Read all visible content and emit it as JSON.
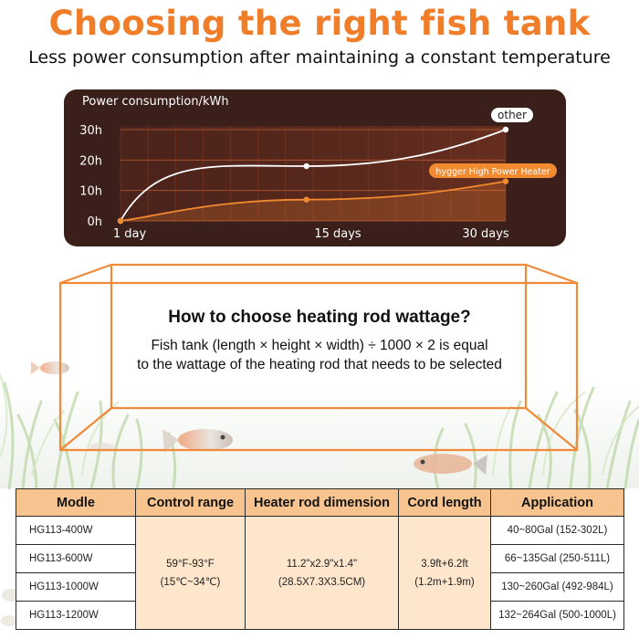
{
  "header": {
    "title": "Choosing the right fish tank",
    "subtitle": "Less power consumption after maintaining a constant temperature"
  },
  "chart_data": {
    "type": "line",
    "ylabel": "Power consumption/kWh",
    "x_ticks": [
      "1 day",
      "15 days",
      "30 days"
    ],
    "y_ticks": [
      "0h",
      "10h",
      "20h",
      "30h"
    ],
    "ylim": [
      0,
      30
    ],
    "grid": true,
    "series": [
      {
        "name": "other",
        "x": [
          1,
          15,
          30
        ],
        "values": [
          0,
          18,
          30
        ],
        "color": "#ffffff"
      },
      {
        "name": "hygger High Power Heater",
        "x": [
          1,
          15,
          30
        ],
        "values": [
          0,
          7,
          13
        ],
        "color": "#f28a30"
      }
    ]
  },
  "info": {
    "question": "How to choose heating rod wattage?",
    "line1": "Fish tank (length × height × width) ÷ 1000 × 2 is equal",
    "line2": "to the wattage of the heating rod that needs to be selected"
  },
  "table": {
    "headers": [
      "Modle",
      "Control range",
      "Heater rod dimension",
      "Cord length",
      "Application"
    ],
    "models": [
      "HG113-400W",
      "HG113-600W",
      "HG113-1000W",
      "HG113-1200W"
    ],
    "control_range": [
      "59°F-93°F",
      "(15℃~34℃)"
    ],
    "dimension": [
      "11.2\"x2.9\"x1.4\"",
      "(28.5X7.3X3.5CM)"
    ],
    "cord_length": [
      "3.9ft+6.2ft",
      "(1.2m+1.9m)"
    ],
    "applications": [
      "40~80Gal (152-302L)",
      "66~135Gal (250-511L)",
      "130~260Gal (492-984L)",
      "132~264Gal (500-1000L)"
    ]
  },
  "colors": {
    "accent": "#f07d2a",
    "table_header": "#f7c48f",
    "table_fill": "#fde6cc",
    "chart_bg": "#3a1f1a"
  }
}
